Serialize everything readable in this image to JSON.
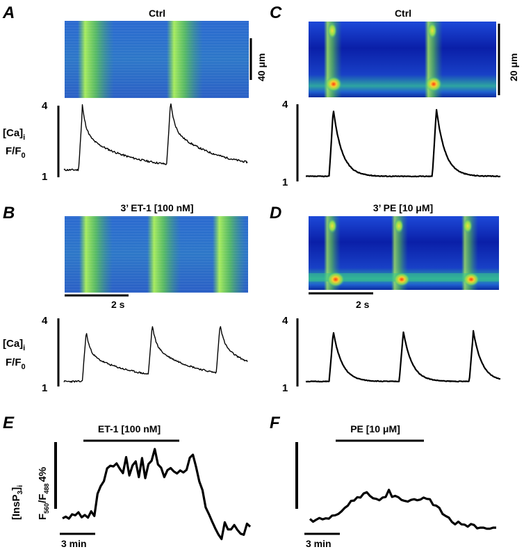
{
  "figure": {
    "panels": [
      {
        "id": "A",
        "label": "A",
        "title": "Ctrl",
        "agonist": "Ctrl",
        "scalebar": {
          "value": "40",
          "unit": "μm"
        }
      },
      {
        "id": "B",
        "label": "B",
        "title": "3’ ET-1 [100 nM]",
        "agonist": "ET-1",
        "concentration": "100 nM",
        "scalebar": {
          "value": "2",
          "unit": "s",
          "text": "2 s"
        }
      },
      {
        "id": "C",
        "label": "C",
        "title": "Ctrl",
        "agonist": "Ctrl",
        "scalebar": {
          "value": "20",
          "unit": "μm"
        }
      },
      {
        "id": "D",
        "label": "D",
        "title": "3’ PE [10 μM]",
        "agonist": "PE",
        "concentration": "10 μM",
        "scalebar": {
          "value": "2",
          "unit": "s",
          "text": "2 s"
        }
      },
      {
        "id": "E",
        "label": "E",
        "bar_label": "ET-1 [100 nM]",
        "time_scale": "3 min",
        "y_scale": "4%"
      },
      {
        "id": "F",
        "label": "F",
        "bar_label": "PE [10 μM]",
        "time_scale": "3 min"
      }
    ],
    "ca_axis": {
      "label_main": "[Ca]",
      "label_sub": "i",
      "ratio_main": "F/F",
      "ratio_sub": "0",
      "ymin": "1",
      "ymax": "4"
    },
    "insp3_axis": {
      "label_main": "[InsP",
      "label_sub1": "3",
      "label_close": "]",
      "label_sub2": "i",
      "ratio_f1": "F",
      "ratio_s1": "560",
      "ratio_sep": "/F",
      "ratio_s2": "488",
      "scale": "4%"
    }
  },
  "chart_data": [
    {
      "panel": "A",
      "type": "line",
      "ylabel": "[Ca]i F/F0",
      "ylim": [
        1,
        4
      ],
      "peaks_at_fraction": [
        0.1,
        0.58
      ],
      "baseline": 1.25,
      "peak": 4.0
    },
    {
      "panel": "B",
      "type": "line",
      "ylabel": "[Ca]i F/F0",
      "ylim": [
        1,
        4
      ],
      "peaks_at_fraction": [
        0.12,
        0.48,
        0.85
      ],
      "baseline": 1.2,
      "peak": 3.6
    },
    {
      "panel": "C",
      "type": "line",
      "ylabel": "[Ca]i F/F0",
      "ylim": [
        1,
        4
      ],
      "peaks_at_fraction": [
        0.14,
        0.67
      ],
      "baseline": 1.12,
      "peak": 3.9
    },
    {
      "panel": "D",
      "type": "line",
      "ylabel": "[Ca]i F/F0",
      "ylim": [
        1,
        4
      ],
      "peaks_at_fraction": [
        0.14,
        0.5,
        0.86
      ],
      "baseline": 1.2,
      "peak": 3.6
    },
    {
      "panel": "E",
      "type": "line",
      "ylabel": "[InsP3]i F560/F488",
      "x_unit": "min",
      "values": [
        0.3,
        0.8,
        0.2,
        1.5,
        1.2,
        2.1,
        0.6,
        1.3,
        0.5,
        2.4,
        1.0,
        7.6,
        9.9,
        11.4,
        15.2,
        16.0,
        15.8,
        16.7,
        15.1,
        13.8,
        18.6,
        13.1,
        16.1,
        17.3,
        12.6,
        18.3,
        12.3,
        16.5,
        17.5,
        21.0,
        16.4,
        15.4,
        12.6,
        14.7,
        15.3,
        14.3,
        13.7,
        14.6,
        14.0,
        14.8,
        18.4,
        19.3,
        15.6,
        11.3,
        8.7,
        3.6,
        1.6,
        -0.6,
        -2.7,
        -4.5,
        -5.9,
        -0.9,
        -3.0,
        -3.0,
        -1.7,
        -3.2,
        -4.3,
        -4.6,
        -1.3,
        -2.2
      ]
    },
    {
      "panel": "F",
      "type": "line",
      "ylabel": "[InsP3]i F560/F488",
      "x_unit": "min",
      "values": [
        0.1,
        -0.7,
        -0.1,
        0.4,
        0.0,
        0.3,
        0.2,
        1.1,
        1.2,
        1.6,
        2.4,
        3.4,
        4.1,
        5.5,
        5.6,
        6.6,
        6.5,
        7.7,
        8.1,
        7.0,
        6.3,
        6.1,
        5.7,
        6.5,
        6.7,
        8.8,
        6.7,
        7.0,
        6.6,
        5.8,
        5.5,
        5.3,
        5.8,
        6.0,
        5.7,
        5.9,
        6.5,
        6.1,
        6.0,
        4.3,
        4.1,
        3.4,
        1.6,
        1.0,
        0.5,
        -0.8,
        -1.5,
        -0.7,
        -1.5,
        -1.6,
        -2.2,
        -1.4,
        -1.7,
        -2.7,
        -2.5,
        -2.5,
        -2.8,
        -2.8,
        -2.5,
        -2.5
      ]
    }
  ]
}
